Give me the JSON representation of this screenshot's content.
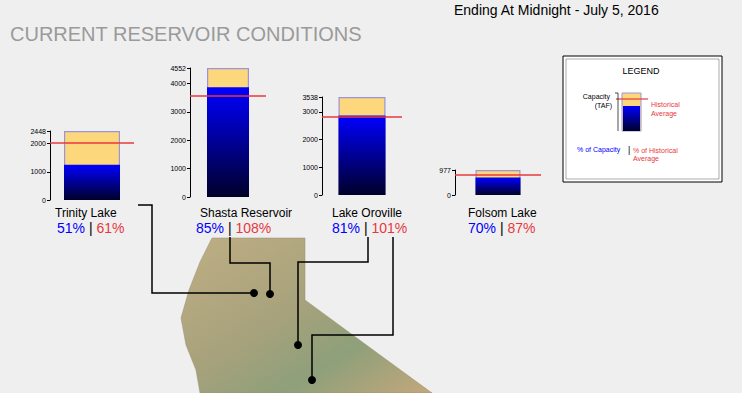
{
  "title": "CURRENT RESERVOIR CONDITIONS",
  "subtitle": "Ending At Midnight - July 5, 2016",
  "separator": "|",
  "key": {
    "title": "LEGEND",
    "capacity": "Capacity (TAF)",
    "average": "Historical Average",
    "percent_capacity": "% of Capacity",
    "percent_average": "% of Historical Average"
  },
  "chart_data": [
    {
      "type": "bar",
      "title": "Trinity Lake",
      "categories": [
        null
      ],
      "series": [
        {
          "type": "bar",
          "color": "#fdd77c",
          "values": [
            2448
          ]
        },
        {
          "type": "bar",
          "color": "#0000ff",
          "values": [
            1248
          ]
        },
        {
          "type": "line",
          "color": "#e8383d",
          "values": [
            2046
          ]
        }
      ],
      "ylim": [
        0,
        2448
      ],
      "yticks": [
        0,
        1000,
        2000,
        2448
      ],
      "grid": false,
      "tick_labels": "y",
      "capacity_percent": "51%",
      "average_percent": "61%"
    },
    {
      "type": "bar",
      "title": "Shasta Reservoir",
      "categories": [
        null
      ],
      "series": [
        {
          "type": "bar",
          "color": "#fdd77c",
          "values": [
            4552
          ]
        },
        {
          "type": "bar",
          "color": "#0000ff",
          "values": [
            3869
          ]
        },
        {
          "type": "line",
          "color": "#e8383d",
          "values": [
            3583
          ]
        }
      ],
      "ylim": [
        0,
        4552
      ],
      "yticks": [
        0,
        1000,
        2000,
        3000,
        4000,
        4552
      ],
      "grid": false,
      "tick_labels": "y",
      "capacity_percent": "85%",
      "average_percent": "108%"
    },
    {
      "type": "bar",
      "title": "Lake Oroville",
      "categories": [
        null
      ],
      "series": [
        {
          "type": "bar",
          "color": "#fdd77c",
          "values": [
            3538
          ]
        },
        {
          "type": "bar",
          "color": "#0000ff",
          "values": [
            2866
          ]
        },
        {
          "type": "line",
          "color": "#e8383d",
          "values": [
            2838
          ]
        }
      ],
      "ylim": [
        0,
        3538
      ],
      "yticks": [
        0,
        1000,
        2000,
        3000,
        3538
      ],
      "grid": false,
      "tick_labels": "y",
      "capacity_percent": "81%",
      "average_percent": "101%"
    },
    {
      "type": "bar",
      "title": "Folsom Lake",
      "categories": [
        null
      ],
      "series": [
        {
          "type": "bar",
          "color": "#fdd77c",
          "values": [
            977
          ]
        },
        {
          "type": "bar",
          "color": "#0000ff",
          "values": [
            684
          ]
        },
        {
          "type": "line",
          "color": "#e8383d",
          "values": [
            786
          ]
        }
      ],
      "ylim": [
        0,
        977
      ],
      "yticks": [
        0,
        977
      ],
      "grid": false,
      "tick_labels": "y",
      "capacity_percent": "70%",
      "average_percent": "87%"
    }
  ]
}
